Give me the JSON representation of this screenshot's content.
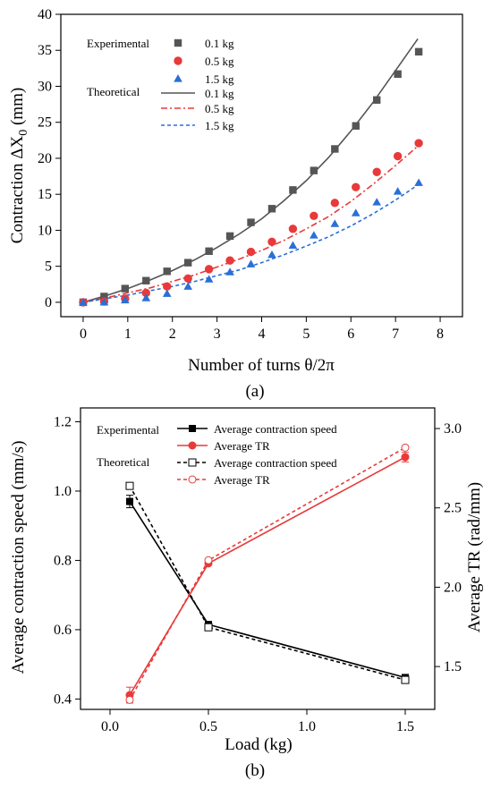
{
  "chart_data": [
    {
      "type": "scatter",
      "caption": "(a)",
      "xlabel": "Number of turns θ/2π",
      "ylabel_main": "Contraction ΔX",
      "ylabel_sub": "0",
      "ylabel_unit": " (mm)",
      "xlim": [
        -0.5,
        8.5
      ],
      "ylim": [
        -2,
        40
      ],
      "xticks": [
        0,
        1,
        2,
        3,
        4,
        5,
        6,
        7,
        8
      ],
      "yticks": [
        0,
        5,
        10,
        15,
        20,
        25,
        30,
        35,
        40
      ],
      "legend_placement": "top-left",
      "legend_groups": [
        "Experimental",
        "Theoretical"
      ],
      "colors": {
        "load_0_1": "#555555",
        "load_0_5": "#e83a3a",
        "load_1_5": "#2a6fd6"
      },
      "series": [
        {
          "name": "0.1 kg",
          "group": "Experimental",
          "marker": "square",
          "color": "#555555",
          "x": [
            0,
            0.47,
            0.94,
            1.41,
            1.88,
            2.35,
            2.82,
            3.29,
            3.76,
            4.23,
            4.7,
            5.17,
            5.64,
            6.11,
            6.58,
            7.05,
            7.52
          ],
          "y": [
            0,
            0.8,
            1.9,
            3.0,
            4.3,
            5.5,
            7.1,
            9.2,
            11.1,
            13.0,
            15.6,
            18.3,
            21.3,
            24.5,
            28.1,
            31.7,
            34.8
          ]
        },
        {
          "name": "0.5 kg",
          "group": "Experimental",
          "marker": "circle",
          "color": "#e83a3a",
          "x": [
            0,
            0.47,
            0.94,
            1.41,
            1.88,
            2.35,
            2.82,
            3.29,
            3.76,
            4.23,
            4.7,
            5.17,
            5.64,
            6.11,
            6.58,
            7.05,
            7.52
          ],
          "y": [
            0,
            0.1,
            0.5,
            1.3,
            2.2,
            3.3,
            4.6,
            5.8,
            7.0,
            8.4,
            10.2,
            12.0,
            13.8,
            16.0,
            18.1,
            20.3,
            22.1
          ]
        },
        {
          "name": "1.5 kg",
          "group": "Experimental",
          "marker": "triangle",
          "color": "#2a6fd6",
          "x": [
            0,
            0.47,
            0.94,
            1.41,
            1.88,
            2.35,
            2.82,
            3.29,
            3.76,
            4.23,
            4.7,
            5.17,
            5.64,
            6.11,
            6.58,
            7.05,
            7.52
          ],
          "y": [
            0,
            0.0,
            0.3,
            0.6,
            1.2,
            2.2,
            3.2,
            4.2,
            5.3,
            6.6,
            7.9,
            9.3,
            10.9,
            12.4,
            13.9,
            15.4,
            16.6
          ]
        },
        {
          "name": "0.1 kg",
          "group": "Theoretical",
          "line": "solid",
          "color": "#555555",
          "x": [
            0,
            0.5,
            1,
            1.5,
            2,
            2.5,
            3,
            3.5,
            4,
            4.5,
            5,
            5.5,
            6,
            6.5,
            7,
            7.5
          ],
          "y": [
            0,
            0.9,
            1.9,
            3.1,
            4.4,
            5.9,
            7.6,
            9.5,
            11.6,
            14.1,
            16.9,
            20.1,
            23.8,
            27.8,
            32.2,
            36.6
          ]
        },
        {
          "name": "0.5 kg",
          "group": "Theoretical",
          "line": "dashdot",
          "color": "#e83a3a",
          "x": [
            0,
            0.5,
            1,
            1.5,
            2,
            2.5,
            3,
            3.5,
            4,
            4.5,
            5,
            5.5,
            6,
            6.5,
            7,
            7.5
          ],
          "y": [
            0,
            0.6,
            1.3,
            2.0,
            2.9,
            3.8,
            4.9,
            6.0,
            7.2,
            8.6,
            10.2,
            11.9,
            14.0,
            16.4,
            19.0,
            21.7
          ]
        },
        {
          "name": "1.5 kg",
          "group": "Theoretical",
          "line": "dashed",
          "color": "#2a6fd6",
          "x": [
            0,
            0.5,
            1,
            1.5,
            2,
            2.5,
            3,
            3.5,
            4,
            4.5,
            5,
            5.5,
            6,
            6.5,
            7,
            7.5
          ],
          "y": [
            0,
            0.5,
            1.0,
            1.6,
            2.2,
            2.9,
            3.7,
            4.5,
            5.5,
            6.6,
            7.8,
            9.1,
            10.6,
            12.3,
            14.2,
            16.3
          ]
        }
      ]
    },
    {
      "type": "line",
      "caption": "(b)",
      "xlabel": "Load (kg)",
      "ylabel_left": "Average contraction speed (mm/s)",
      "ylabel_right": "Average TR (rad/mm)",
      "xlim": [
        -0.15,
        1.65
      ],
      "ylim_left": [
        0.37,
        1.24
      ],
      "ylim_right": [
        1.23,
        3.13
      ],
      "xticks": [
        0.0,
        0.5,
        1.0,
        1.5
      ],
      "xtick_labels": [
        "0.0",
        "0.5",
        "1.0",
        "1.5"
      ],
      "yticks_left": [
        0.4,
        0.6,
        0.8,
        1.0,
        1.2
      ],
      "yticks_right": [
        1.5,
        2.0,
        2.5,
        3.0
      ],
      "legend_placement": "top-center",
      "legend_groups": [
        "Experimental",
        "Theoretical"
      ],
      "series": [
        {
          "name": "Average contraction speed",
          "group": "Experimental",
          "axis": "left",
          "color": "#000000",
          "marker": "square-filled",
          "line": "solid",
          "x": [
            0.1,
            0.5,
            1.5
          ],
          "y": [
            0.97,
            0.615,
            0.462
          ],
          "err": [
            0.018,
            0.006,
            0.006
          ]
        },
        {
          "name": "Average TR",
          "group": "Experimental",
          "axis": "right",
          "color": "#e83a3a",
          "marker": "circle-filled",
          "line": "solid",
          "x": [
            0.1,
            0.5,
            1.5
          ],
          "y": [
            1.32,
            2.15,
            2.82
          ],
          "err": [
            0.05,
            0.01,
            0.03
          ]
        },
        {
          "name": "Average contraction speed",
          "group": "Theoretical",
          "axis": "left",
          "color": "#000000",
          "marker": "square-open",
          "line": "dashed",
          "x": [
            0.1,
            0.5,
            1.5
          ],
          "y": [
            1.015,
            0.607,
            0.455
          ]
        },
        {
          "name": "Average TR",
          "group": "Theoretical",
          "axis": "right",
          "color": "#e83a3a",
          "marker": "circle-open",
          "line": "dashed",
          "x": [
            0.1,
            0.5,
            1.5
          ],
          "y": [
            1.29,
            2.17,
            2.88
          ]
        }
      ]
    }
  ]
}
